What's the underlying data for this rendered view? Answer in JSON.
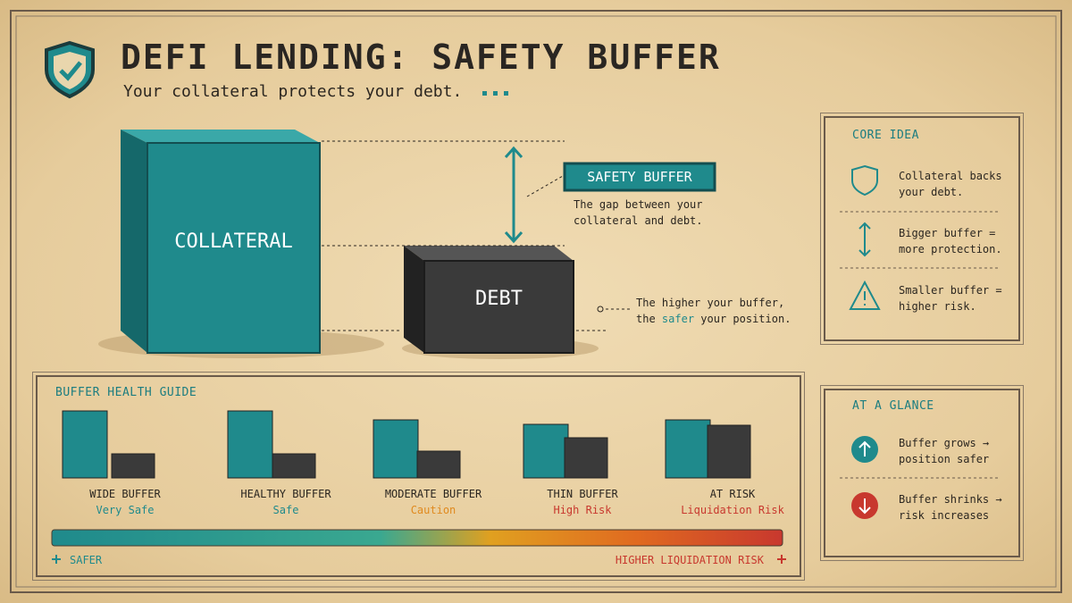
{
  "header": {
    "title": "DEFI LENDING: SAFETY BUFFER",
    "subtitle": "Your collateral protects your debt."
  },
  "hero": {
    "collateral_label": "COLLATERAL",
    "debt_label": "DEBT",
    "buffer_label": "SAFETY BUFFER",
    "buffer_note": "The gap between your collateral and debt.",
    "position_note": {
      "before": "The higher your buffer, the",
      "highlight": "safer",
      "after": "your position."
    }
  },
  "core_idea": {
    "title": "CORE IDEA",
    "items": [
      "Collateral backs your debt.",
      "Bigger buffer = more protection.",
      "Smaller buffer = higher risk."
    ]
  },
  "at_a_glance": {
    "title": "AT A GLANCE",
    "items": [
      "Buffer grows → position safer",
      "Buffer shrinks → risk increases"
    ]
  },
  "guide": {
    "title": "BUFFER HEALTH GUIDE",
    "levels": [
      {
        "name": "WIDE BUFFER",
        "status": "Very Safe"
      },
      {
        "name": "HEALTHY BUFFER",
        "status": "Safe"
      },
      {
        "name": "MODERATE BUFFER",
        "status": "Caution"
      },
      {
        "name": "THIN BUFFER",
        "status": "High Risk"
      },
      {
        "name": "AT RISK",
        "status": "Liquidation Risk"
      }
    ],
    "scale": {
      "left": "SAFER",
      "right": "HIGHER LIQUIDATION RISK"
    }
  }
}
